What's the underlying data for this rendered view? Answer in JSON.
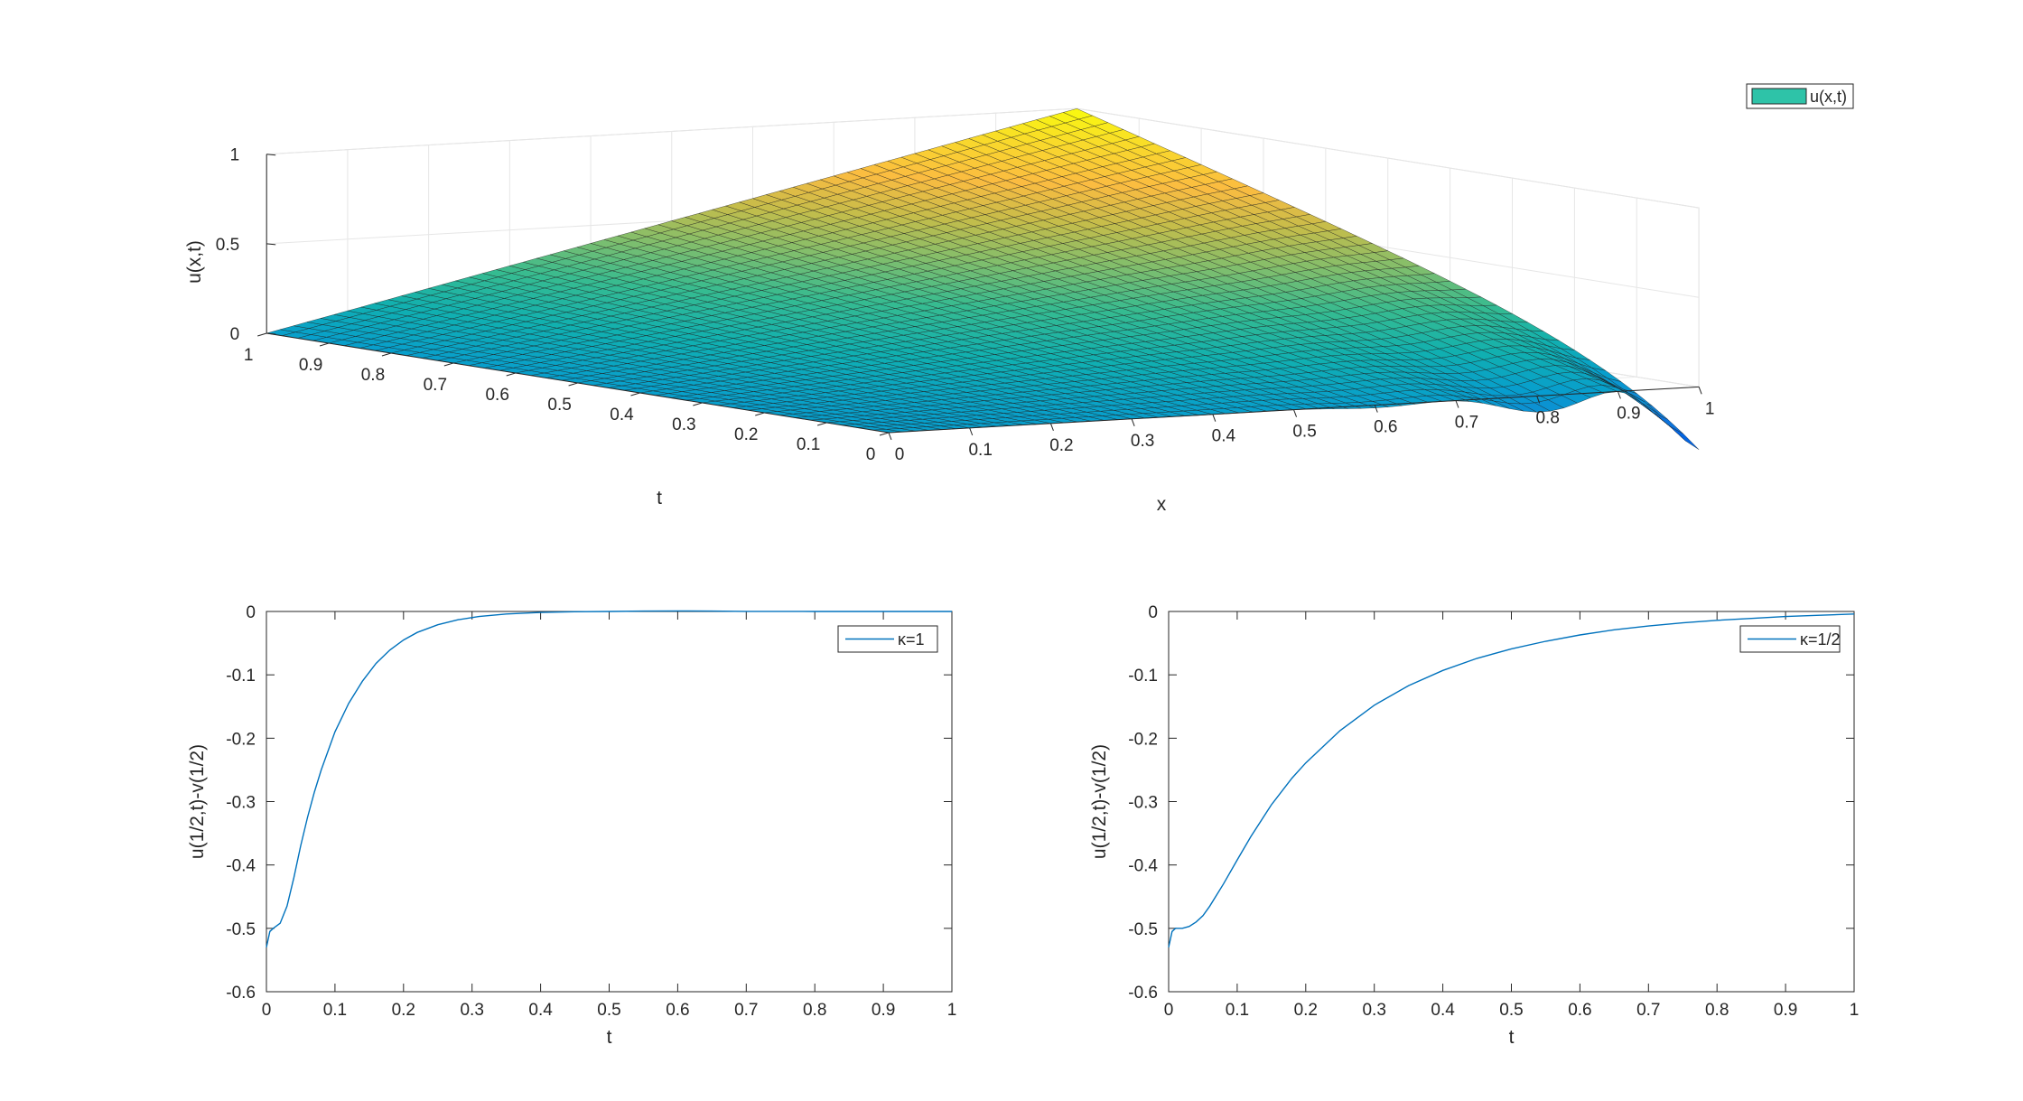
{
  "chart_data": [
    {
      "type": "surface",
      "title": "",
      "xlabel": "x",
      "ylabel": "t",
      "zlabel": "u(x,t)",
      "xlim": [
        0,
        1
      ],
      "ylim": [
        0,
        1
      ],
      "zlim": [
        0,
        1
      ],
      "x_ticks": [
        "0",
        "0.1",
        "0.2",
        "0.3",
        "0.4",
        "0.5",
        "0.6",
        "0.7",
        "0.8",
        "0.9",
        "1"
      ],
      "t_ticks": [
        "0",
        "0.1",
        "0.2",
        "0.3",
        "0.4",
        "0.5",
        "0.6",
        "0.7",
        "0.8",
        "0.9",
        "1"
      ],
      "z_ticks": [
        "0",
        "0.5",
        "1"
      ],
      "grid": true,
      "colormap": "parula",
      "legend": {
        "label": "u(x,t)",
        "placement": "top-right",
        "swatch_color": "#2EC3A8"
      },
      "mesh_resolution": [
        60,
        40
      ],
      "surface_formula": "u = x*t - x^8 * 0.55*exp(-24t)*(sin(6πt)+0.9*cos(10πt)*0.5) approx; corners u(0,t)=0, u(1,1)=1, u(x,0)=0 with ripples near x=1",
      "corner_values": {
        "x0_t0": 0,
        "x1_t0": 0,
        "x0_t1": 0,
        "x1_t1": 1
      }
    },
    {
      "type": "line",
      "title": "",
      "xlabel": "t",
      "ylabel": "u(1/2,t)-v(1/2)",
      "xlim": [
        0,
        1
      ],
      "ylim": [
        -0.6,
        0
      ],
      "x_ticks": [
        "0",
        "0.1",
        "0.2",
        "0.3",
        "0.4",
        "0.5",
        "0.6",
        "0.7",
        "0.8",
        "0.9",
        "1"
      ],
      "y_ticks": [
        "0",
        "-0.1",
        "-0.2",
        "-0.3",
        "-0.4",
        "-0.5",
        "-0.6"
      ],
      "legend": {
        "label": "κ=1",
        "placement": "top-right"
      },
      "series": [
        {
          "color": "#0072BD",
          "x": [
            0,
            0.005,
            0.01,
            0.02,
            0.03,
            0.04,
            0.05,
            0.06,
            0.07,
            0.08,
            0.1,
            0.12,
            0.14,
            0.16,
            0.18,
            0.2,
            0.22,
            0.25,
            0.28,
            0.31,
            0.35,
            0.4,
            0.45,
            0.5,
            0.55,
            0.6,
            0.65,
            0.7,
            0.8,
            0.9,
            1.0
          ],
          "y": [
            -0.53,
            -0.505,
            -0.5,
            -0.492,
            -0.465,
            -0.42,
            -0.37,
            -0.325,
            -0.285,
            -0.25,
            -0.19,
            -0.145,
            -0.11,
            -0.082,
            -0.061,
            -0.045,
            -0.033,
            -0.021,
            -0.013,
            -0.008,
            -0.004,
            -0.0015,
            -0.0004,
            0.0,
            0.0005,
            0.0008,
            0.0005,
            0.0002,
            0.0,
            0.0,
            0.0
          ]
        }
      ]
    },
    {
      "type": "line",
      "title": "",
      "xlabel": "t",
      "ylabel": "u(1/2,t)-v(1/2)",
      "xlim": [
        0,
        1
      ],
      "ylim": [
        -0.6,
        0
      ],
      "x_ticks": [
        "0",
        "0.1",
        "0.2",
        "0.3",
        "0.4",
        "0.5",
        "0.6",
        "0.7",
        "0.8",
        "0.9",
        "1"
      ],
      "y_ticks": [
        "0",
        "-0.1",
        "-0.2",
        "-0.3",
        "-0.4",
        "-0.5",
        "-0.6"
      ],
      "legend": {
        "label": "κ=1/2",
        "placement": "top-right"
      },
      "series": [
        {
          "color": "#0072BD",
          "x": [
            0,
            0.005,
            0.01,
            0.02,
            0.03,
            0.04,
            0.05,
            0.06,
            0.08,
            0.1,
            0.12,
            0.15,
            0.18,
            0.2,
            0.25,
            0.3,
            0.35,
            0.4,
            0.45,
            0.5,
            0.55,
            0.6,
            0.65,
            0.7,
            0.75,
            0.8,
            0.85,
            0.9,
            0.95,
            1.0
          ],
          "y": [
            -0.53,
            -0.505,
            -0.5,
            -0.5,
            -0.497,
            -0.49,
            -0.48,
            -0.465,
            -0.43,
            -0.392,
            -0.355,
            -0.305,
            -0.263,
            -0.239,
            -0.188,
            -0.148,
            -0.117,
            -0.093,
            -0.074,
            -0.059,
            -0.047,
            -0.037,
            -0.029,
            -0.023,
            -0.018,
            -0.014,
            -0.011,
            -0.008,
            -0.006,
            -0.004
          ]
        }
      ]
    }
  ]
}
